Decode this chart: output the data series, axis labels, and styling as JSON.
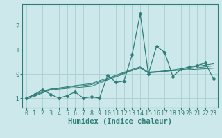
{
  "xlabel": "Humidex (Indice chaleur)",
  "x": [
    0,
    1,
    2,
    3,
    4,
    5,
    6,
    7,
    8,
    9,
    10,
    11,
    12,
    13,
    14,
    15,
    16,
    17,
    18,
    19,
    20,
    21,
    22,
    23
  ],
  "main_line": [
    -1.0,
    -0.85,
    -0.65,
    -0.85,
    -1.0,
    -0.9,
    -0.75,
    -1.0,
    -0.95,
    -1.0,
    -0.05,
    -0.35,
    -0.3,
    0.8,
    2.5,
    0.0,
    1.15,
    0.9,
    -0.1,
    0.2,
    0.3,
    0.35,
    0.45,
    -0.2
  ],
  "line1": [
    -1.05,
    -0.92,
    -0.79,
    -0.66,
    -0.63,
    -0.6,
    -0.57,
    -0.54,
    -0.51,
    -0.38,
    -0.25,
    -0.12,
    0.01,
    0.14,
    0.27,
    0.08,
    0.1,
    0.12,
    0.14,
    0.16,
    0.18,
    0.2,
    0.22,
    0.24
  ],
  "line2": [
    -1.0,
    -0.88,
    -0.76,
    -0.64,
    -0.6,
    -0.56,
    -0.52,
    -0.48,
    -0.44,
    -0.33,
    -0.22,
    -0.08,
    0.04,
    0.16,
    0.24,
    0.04,
    0.07,
    0.1,
    0.14,
    0.18,
    0.22,
    0.26,
    0.3,
    0.34
  ],
  "line3": [
    -1.0,
    -0.86,
    -0.72,
    -0.62,
    -0.58,
    -0.53,
    -0.48,
    -0.44,
    -0.4,
    -0.28,
    -0.18,
    -0.05,
    0.07,
    0.19,
    0.3,
    0.06,
    0.09,
    0.13,
    0.17,
    0.22,
    0.27,
    0.32,
    0.37,
    0.42
  ],
  "ylim": [
    -1.4,
    2.9
  ],
  "yticks": [
    -1,
    0,
    1,
    2
  ],
  "xticks": [
    0,
    1,
    2,
    3,
    4,
    5,
    6,
    7,
    8,
    9,
    10,
    11,
    12,
    13,
    14,
    15,
    16,
    17,
    18,
    19,
    20,
    21,
    22,
    23
  ],
  "bg_color": "#cce8ea",
  "grid_color": "#aacfd2",
  "line_color": "#2d7d78",
  "marker": "D",
  "marker_size": 2.5,
  "tick_fontsize": 6.0,
  "xlabel_fontsize": 7.5
}
